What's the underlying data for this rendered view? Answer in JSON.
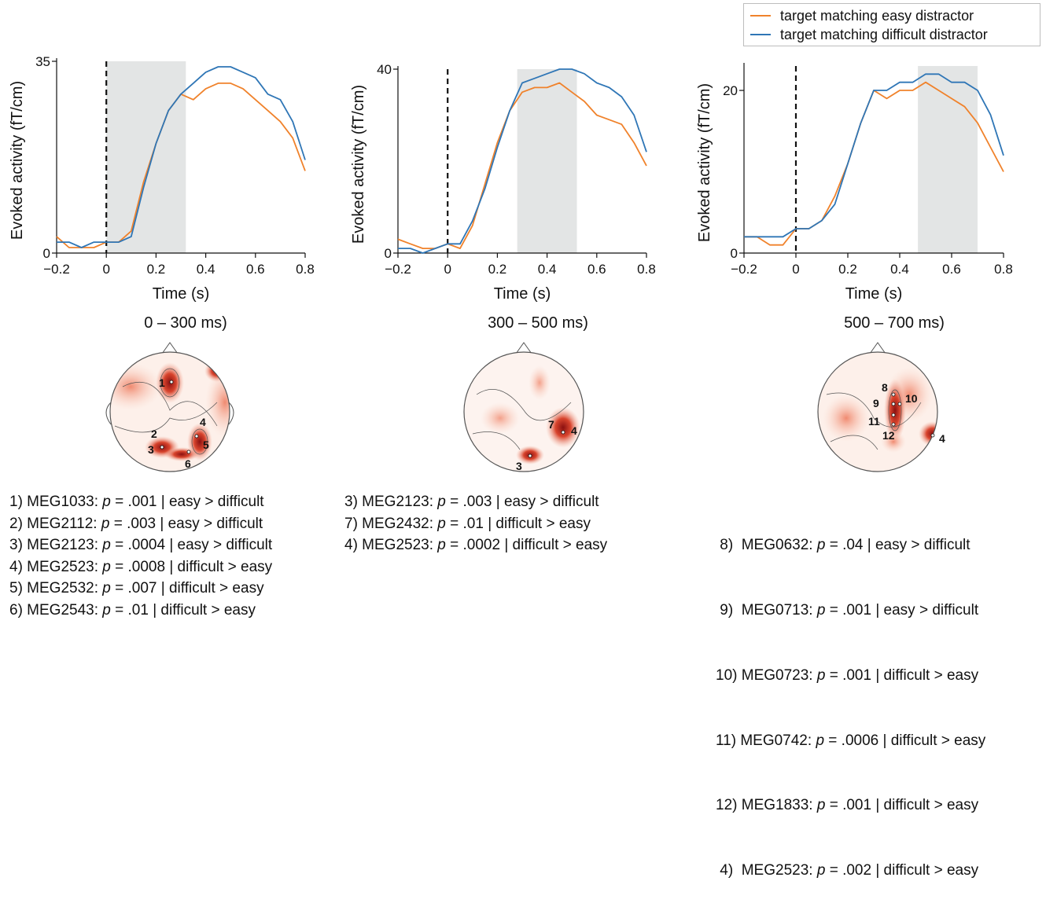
{
  "legend": {
    "entries": [
      {
        "label": "target matching easy distractor",
        "color": "#f0822b"
      },
      {
        "label": "target matching difficult distractor",
        "color": "#2f76b6"
      }
    ]
  },
  "chart_data": [
    {
      "type": "line",
      "xlabel": "Time (s)",
      "ylabel": "Evoked activity (fT/cm)",
      "xlim": [
        -0.2,
        0.8
      ],
      "ylim": [
        0,
        35
      ],
      "xticks": [
        "−0.2",
        "0",
        "0.2",
        "0.4",
        "0.6",
        "0.8"
      ],
      "yticks": [
        "0",
        "35"
      ],
      "stimulus_onset": 0,
      "shaded_window": [
        0,
        0.32
      ],
      "series": [
        {
          "name": "target matching easy distractor",
          "color": "#f0822b",
          "x": [
            -0.2,
            -0.15,
            -0.1,
            -0.05,
            0,
            0.05,
            0.1,
            0.15,
            0.2,
            0.25,
            0.3,
            0.35,
            0.4,
            0.45,
            0.5,
            0.55,
            0.6,
            0.65,
            0.7,
            0.75,
            0.8
          ],
          "y": [
            3,
            1,
            1,
            1,
            2,
            2,
            4,
            13,
            20,
            26,
            29,
            28,
            30,
            31,
            31,
            30,
            28,
            26,
            24,
            21,
            15
          ]
        },
        {
          "name": "target matching difficult distractor",
          "color": "#2f76b6",
          "x": [
            -0.2,
            -0.15,
            -0.1,
            -0.05,
            0,
            0.05,
            0.1,
            0.15,
            0.2,
            0.25,
            0.3,
            0.35,
            0.4,
            0.45,
            0.5,
            0.55,
            0.6,
            0.65,
            0.7,
            0.75,
            0.8
          ],
          "y": [
            2,
            2,
            1,
            2,
            2,
            2,
            3,
            12,
            20,
            26,
            29,
            31,
            33,
            34,
            34,
            33,
            32,
            29,
            28,
            24,
            17
          ]
        }
      ]
    },
    {
      "type": "line",
      "xlabel": "Time (s)",
      "ylabel": "Evoked activity (fT/cm)",
      "xlim": [
        -0.2,
        0.8
      ],
      "ylim": [
        0,
        40
      ],
      "xticks": [
        "−0.2",
        "0",
        "0.2",
        "0.4",
        "0.6",
        "0.8"
      ],
      "yticks": [
        "0",
        "40"
      ],
      "stimulus_onset": 0,
      "shaded_window": [
        0.28,
        0.52
      ],
      "series": [
        {
          "name": "target matching easy distractor",
          "color": "#f0822b",
          "x": [
            -0.2,
            -0.15,
            -0.1,
            -0.05,
            0,
            0.05,
            0.1,
            0.15,
            0.2,
            0.25,
            0.3,
            0.35,
            0.4,
            0.45,
            0.5,
            0.55,
            0.6,
            0.65,
            0.7,
            0.75,
            0.8
          ],
          "y": [
            3,
            2,
            1,
            1,
            2,
            1,
            6,
            15,
            24,
            31,
            35,
            36,
            36,
            37,
            35,
            33,
            30,
            29,
            28,
            24,
            19
          ]
        },
        {
          "name": "target matching difficult distractor",
          "color": "#2f76b6",
          "x": [
            -0.2,
            -0.15,
            -0.1,
            -0.05,
            0,
            0.05,
            0.1,
            0.15,
            0.2,
            0.25,
            0.3,
            0.35,
            0.4,
            0.45,
            0.5,
            0.55,
            0.6,
            0.65,
            0.7,
            0.75,
            0.8
          ],
          "y": [
            1,
            1,
            0,
            1,
            2,
            2,
            7,
            14,
            23,
            31,
            37,
            38,
            39,
            40,
            40,
            39,
            37,
            36,
            34,
            30,
            22
          ]
        }
      ]
    },
    {
      "type": "line",
      "xlabel": "Time (s)",
      "ylabel": "Evoked activity (fT/cm)",
      "xlim": [
        -0.2,
        0.8
      ],
      "ylim": [
        0,
        23
      ],
      "xticks": [
        "−0.2",
        "0",
        "0.2",
        "0.4",
        "0.6",
        "0.8"
      ],
      "yticks": [
        "0",
        "20"
      ],
      "stimulus_onset": 0,
      "shaded_window": [
        0.47,
        0.7
      ],
      "series": [
        {
          "name": "target matching easy distractor",
          "color": "#f0822b",
          "x": [
            -0.2,
            -0.15,
            -0.1,
            -0.05,
            0,
            0.05,
            0.1,
            0.15,
            0.2,
            0.25,
            0.3,
            0.35,
            0.4,
            0.45,
            0.5,
            0.55,
            0.6,
            0.65,
            0.7,
            0.75,
            0.8
          ],
          "y": [
            2,
            2,
            1,
            1,
            3,
            3,
            4,
            7,
            11,
            16,
            20,
            19,
            20,
            20,
            21,
            20,
            19,
            18,
            16,
            13,
            10
          ]
        },
        {
          "name": "target matching difficult distractor",
          "color": "#2f76b6",
          "x": [
            -0.2,
            -0.15,
            -0.1,
            -0.05,
            0,
            0.05,
            0.1,
            0.15,
            0.2,
            0.25,
            0.3,
            0.35,
            0.4,
            0.45,
            0.5,
            0.55,
            0.6,
            0.65,
            0.7,
            0.75,
            0.8
          ],
          "y": [
            2,
            2,
            2,
            2,
            3,
            3,
            4,
            6,
            11,
            16,
            20,
            20,
            21,
            21,
            22,
            22,
            21,
            21,
            20,
            17,
            12
          ]
        }
      ]
    }
  ],
  "topomaps": [
    {
      "title": "0 – 300 ms)",
      "labels": [
        "1",
        "2",
        "3",
        "4",
        "5",
        "6"
      ]
    },
    {
      "title": "300 – 500 ms)",
      "labels": [
        "7",
        "4",
        "3"
      ]
    },
    {
      "title": "500 – 700 ms)",
      "labels": [
        "8",
        "9",
        "10",
        "11",
        "12",
        "4"
      ]
    }
  ],
  "stat_lists": [
    [
      {
        "prefix": "1) MEG1033: ",
        "p": "p",
        "rest": " = .001 | easy > difficult"
      },
      {
        "prefix": "2) MEG2112: ",
        "p": "p",
        "rest": " = .003 | easy > difficult"
      },
      {
        "prefix": "3) MEG2123: ",
        "p": "p",
        "rest": " = .0004 | easy > difficult"
      },
      {
        "prefix": "4) MEG2523: ",
        "p": "p",
        "rest": " = .0008 | difficult > easy"
      },
      {
        "prefix": "5) MEG2532: ",
        "p": "p",
        "rest": " = .007 | difficult > easy"
      },
      {
        "prefix": "6) MEG2543: ",
        "p": "p",
        "rest": " = .01 | difficult > easy"
      }
    ],
    [
      {
        "prefix": "3) MEG2123: ",
        "p": "p",
        "rest": " = .003 | easy > difficult"
      },
      {
        "prefix": "7) MEG2432: ",
        "p": "p",
        "rest": " = .01 | difficult > easy"
      },
      {
        "prefix": "4) MEG2523: ",
        "p": "p",
        "rest": " = .0002 | difficult > easy"
      }
    ],
    [
      {
        "prefix": " 8)  MEG0632: ",
        "p": "p",
        "rest": " = .04 | easy > difficult"
      },
      {
        "prefix": " 9)  MEG0713: ",
        "p": "p",
        "rest": " = .001 | easy > difficult"
      },
      {
        "prefix": "10) MEG0723: ",
        "p": "p",
        "rest": " = .001 | difficult > easy"
      },
      {
        "prefix": "11) MEG0742: ",
        "p": "p",
        "rest": " = .0006 | difficult > easy"
      },
      {
        "prefix": "12) MEG1833: ",
        "p": "p",
        "rest": " = .001 | difficult > easy"
      },
      {
        "prefix": " 4)  MEG2523: ",
        "p": "p",
        "rest": " = .002 | difficult > easy"
      }
    ]
  ]
}
